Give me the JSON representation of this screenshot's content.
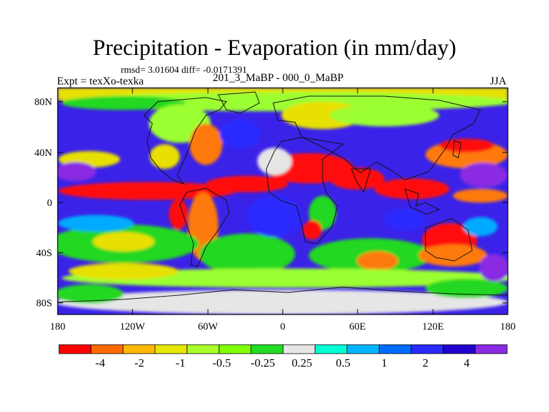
{
  "title": "Precipitation - Evaporation (in mm/day)",
  "stats": "rmsd= 3.01604 diff= -0.0171391",
  "experiment": "Expt = texXo-texka",
  "experiment_names": "201_3_MaBP - 000_0_MaBP",
  "season": "JJA",
  "y_ticks": [
    "80N",
    "40N",
    "0",
    "40S",
    "80S"
  ],
  "x_ticks": [
    "180",
    "120W",
    "60W",
    "0",
    "60E",
    "120E",
    "180"
  ],
  "colorbar": {
    "colors": [
      "#ff0000",
      "#ff6a00",
      "#ffb800",
      "#e6e600",
      "#aaff2a",
      "#7fff00",
      "#22dd22",
      "#e6e6e6",
      "#00ffd4",
      "#00b4ff",
      "#006bff",
      "#2a2aff",
      "#2200cc",
      "#8a2be2"
    ],
    "labels": [
      "-4",
      "-2",
      "-1",
      "-0.5",
      "-0.25",
      "0.25",
      "0.5",
      "1",
      "2",
      "4"
    ]
  },
  "map_fill": {
    "ocean_base": "#3a22e8",
    "colors": {
      "red": "#ff1010",
      "orange": "#ff7a10",
      "yellow": "#e8e000",
      "lime": "#9cff33",
      "green": "#22d822",
      "gray": "#e6e6e6",
      "cyan": "#00e6e6",
      "sky": "#00aaff",
      "blue": "#2a2aff",
      "violet": "#8a2be2"
    }
  }
}
